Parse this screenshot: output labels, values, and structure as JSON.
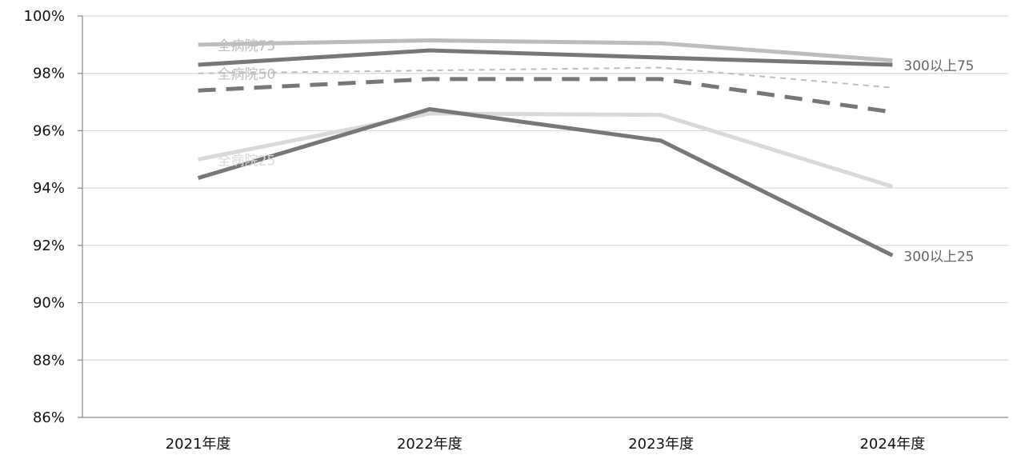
{
  "chart_data": {
    "type": "line",
    "categories": [
      "2021年度",
      "2022年度",
      "2023年度",
      "2024年度"
    ],
    "ylim": [
      86,
      100
    ],
    "yticks": [
      86,
      88,
      90,
      92,
      94,
      96,
      98,
      100
    ],
    "ytick_labels": [
      "86%",
      "88%",
      "90%",
      "92%",
      "94%",
      "96%",
      "98%",
      "100%"
    ],
    "grid": true,
    "series": [
      {
        "name": "全病院75",
        "values": [
          99.0,
          99.15,
          99.05,
          98.45
        ],
        "color": "#bdbdbd",
        "style": "solid",
        "weight": "thick",
        "label_at": "start"
      },
      {
        "name": "",
        "values": [
          98.3,
          98.8,
          98.55,
          98.3
        ],
        "color": "#777777",
        "style": "solid",
        "weight": "thick"
      },
      {
        "name": "全病院50",
        "values": [
          98.0,
          98.1,
          98.2,
          97.5
        ],
        "color": "#bdbdbd",
        "style": "dashed",
        "weight": "thin",
        "label_at": "start"
      },
      {
        "name": "",
        "values": [
          97.4,
          97.8,
          97.8,
          96.65
        ],
        "color": "#777777",
        "style": "dashed",
        "weight": "thick"
      },
      {
        "name": "全病院25",
        "values": [
          95.0,
          96.6,
          96.55,
          94.05
        ],
        "color": "#d9d9d9",
        "style": "solid",
        "weight": "thick",
        "label_at": "start"
      },
      {
        "name": "",
        "values": [
          94.35,
          96.75,
          95.65,
          91.65
        ],
        "color": "#777777",
        "style": "solid",
        "weight": "thick"
      }
    ],
    "annotations": [
      {
        "text": "300以上75",
        "value": 98.3,
        "category": "2024年度",
        "color": "#666666"
      },
      {
        "text": "300以上25",
        "value": 91.65,
        "category": "2024年度",
        "color": "#666666"
      }
    ]
  }
}
